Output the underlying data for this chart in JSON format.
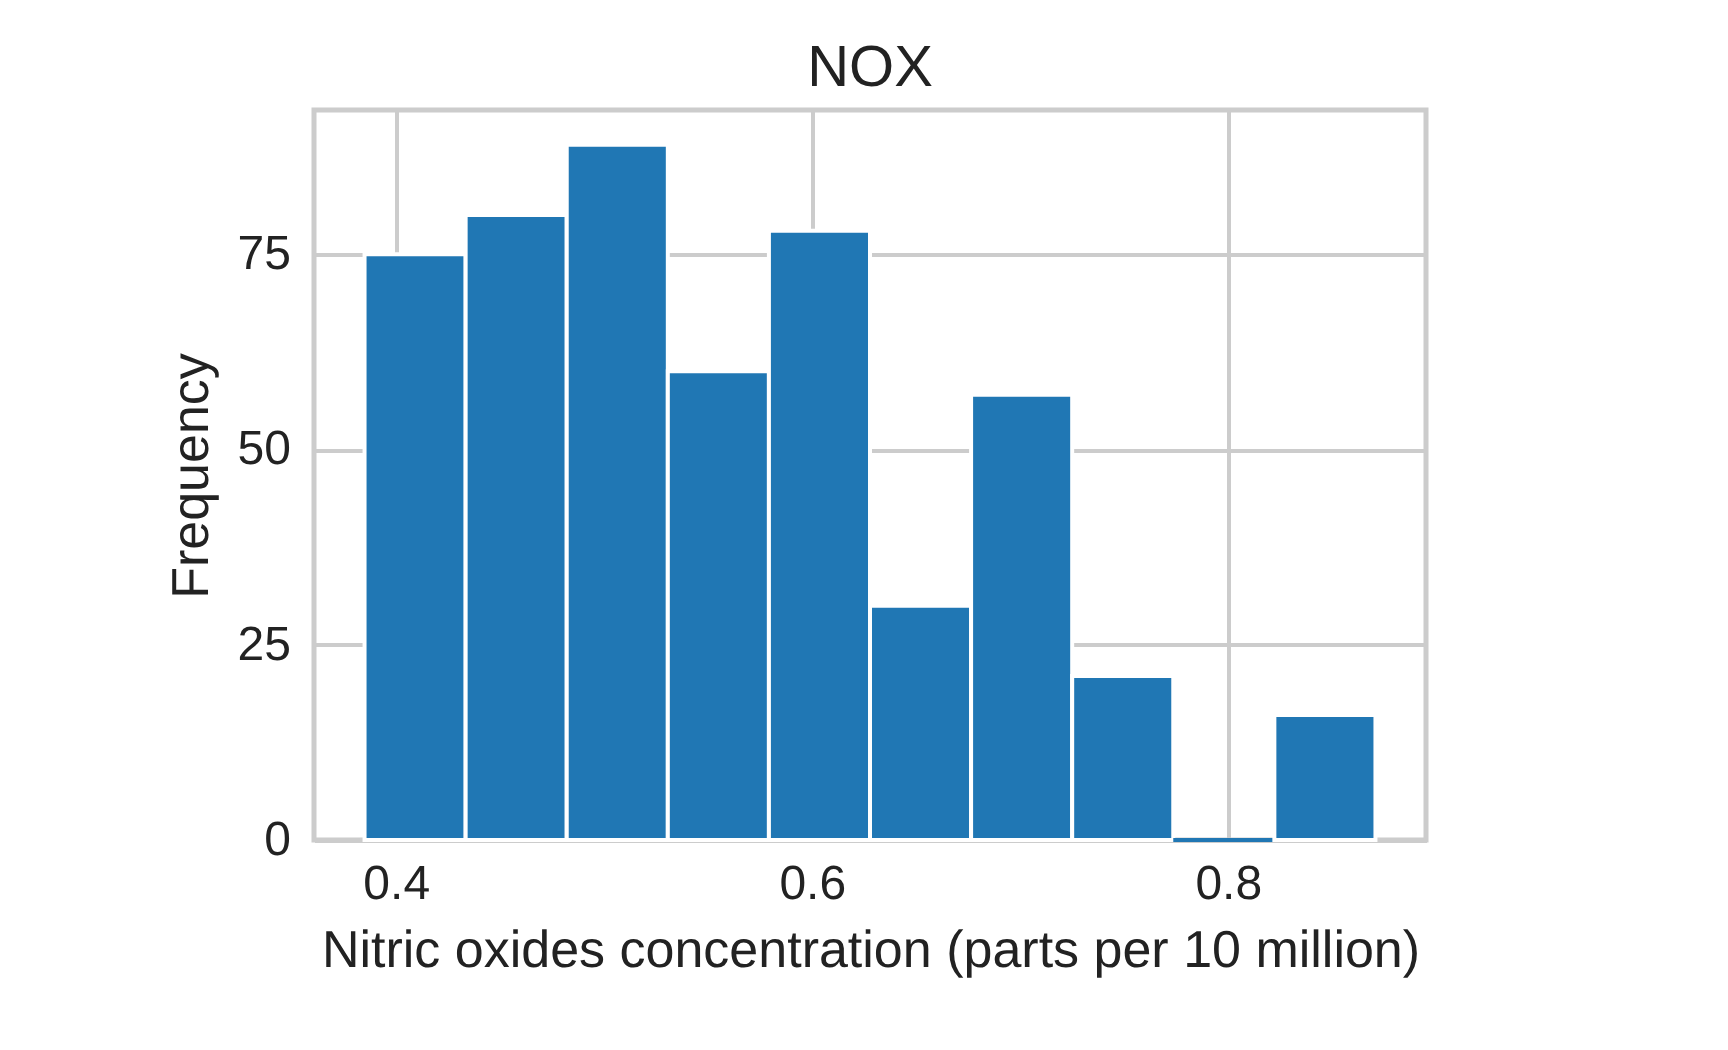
{
  "chart_data": {
    "type": "histogram",
    "title": "NOX",
    "xlabel": "Nitric oxides concentration (parts per 10 million)",
    "ylabel": "Frequency",
    "bins": [
      0.385,
      0.4336,
      0.4822,
      0.5308,
      0.5794,
      0.628,
      0.6766,
      0.7252,
      0.7738,
      0.8224,
      0.871
    ],
    "values": [
      75,
      80,
      89,
      60,
      78,
      30,
      57,
      21,
      0,
      16
    ],
    "color": "#2077b4",
    "xlim": [
      0.3607,
      0.8953
    ],
    "xticks": [
      0.4,
      0.6,
      0.8
    ],
    "ylim": [
      0,
      93.45
    ],
    "yticks": [
      0,
      25,
      50,
      75
    ],
    "grid": true
  }
}
